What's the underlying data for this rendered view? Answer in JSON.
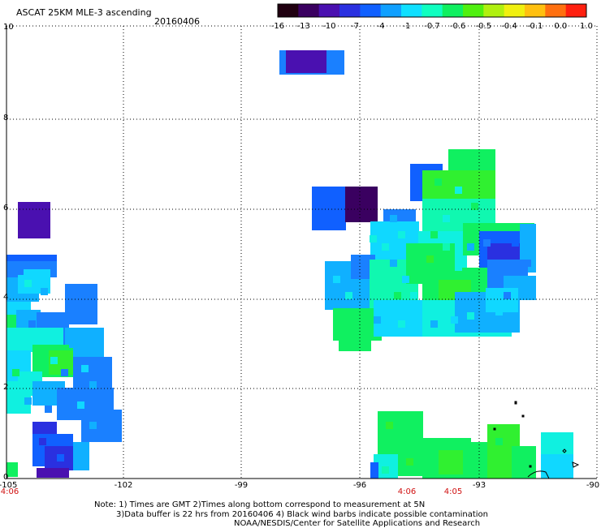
{
  "header": {
    "title": "ASCAT 25KM MLE-3 ascending",
    "date": "20160406"
  },
  "colorbar": {
    "labels": [
      "-16",
      "-13",
      "-10",
      "-7",
      "-4",
      "-1",
      "-0.7",
      "-0.6",
      "-0.5",
      "-0.4",
      "-0.1",
      "0.0",
      "1.0"
    ],
    "colors": [
      "#200010",
      "#3a0060",
      "#4a10b0",
      "#2a30e0",
      "#1060ff",
      "#10a0ff",
      "#10e0ff",
      "#10ffc0",
      "#10f060",
      "#50f010",
      "#b0f010",
      "#f0f010",
      "#ffc010",
      "#ff7010",
      "#ff2010"
    ]
  },
  "axes": {
    "x_ticks": [
      "-105",
      "-102",
      "-99",
      "-96",
      "-93",
      "-90"
    ],
    "y_ticks": [
      "0",
      "2",
      "4",
      "6",
      "8",
      "10"
    ],
    "times": [
      {
        "label": "4:06"
      },
      {
        "label": "4:06"
      },
      {
        "label": "4:05"
      }
    ]
  },
  "notes": {
    "line1": "Note: 1) Times are GMT 2)Times along bottom correspond to measurement at 5N",
    "line2": "3)Data buffer is 22 hrs from 20160406 4) Black wind barbs indicate possible contamination",
    "line3": "NOAA/NESDIS/Center for Satellite Applications and Research"
  }
}
